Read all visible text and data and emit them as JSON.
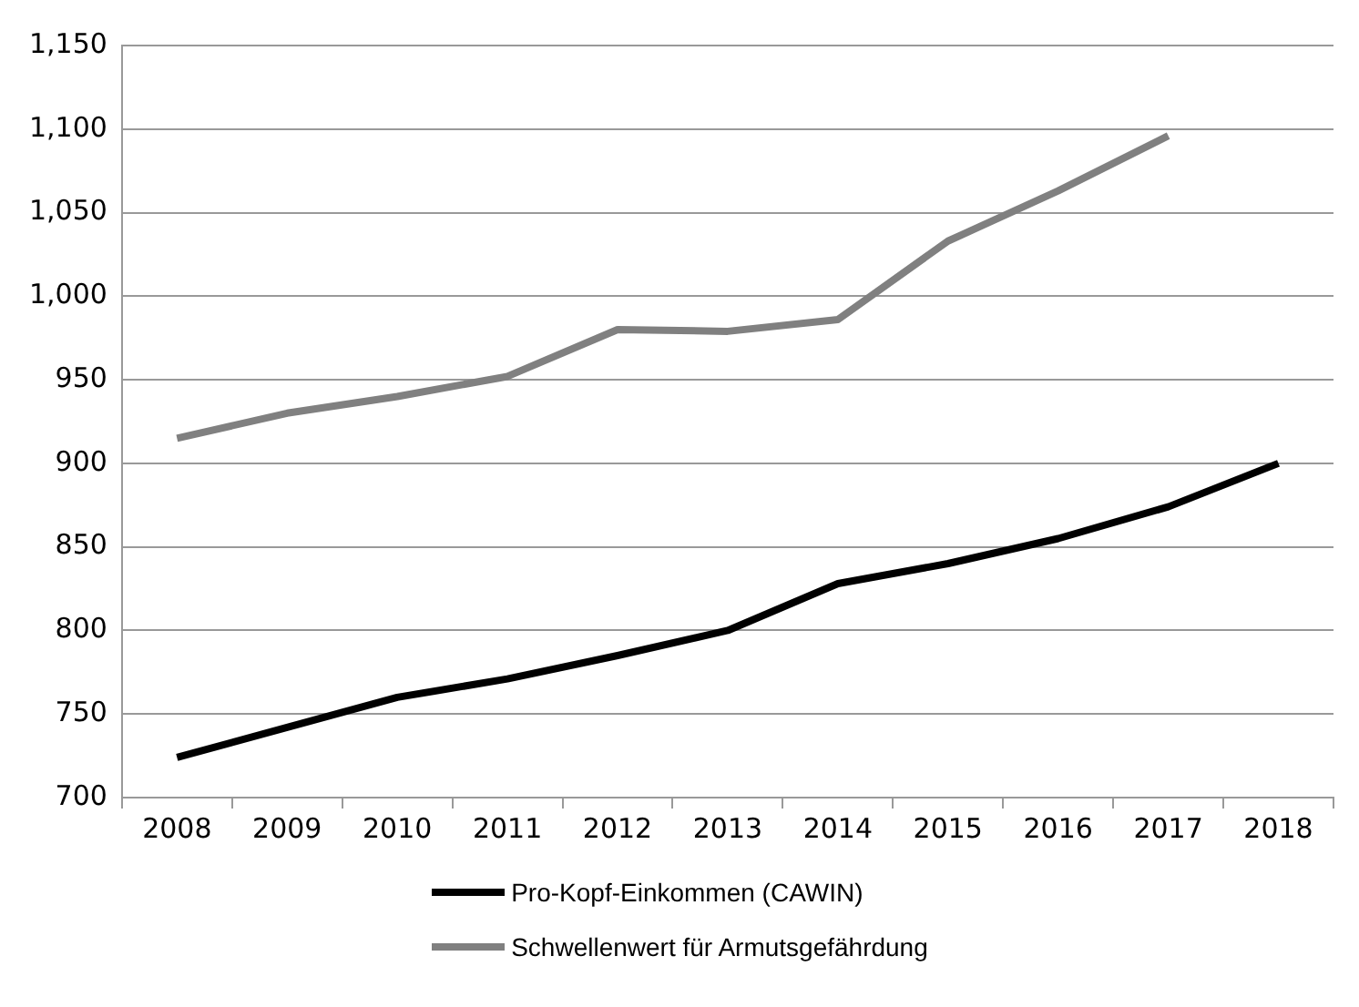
{
  "chart_data": {
    "type": "line",
    "categories": [
      "2008",
      "2009",
      "2010",
      "2011",
      "2012",
      "2013",
      "2014",
      "2015",
      "2016",
      "2017",
      "2018"
    ],
    "series": [
      {
        "name": "Pro-Kopf-Einkommen (CAWIN)",
        "color": "#000000",
        "values": [
          724,
          742,
          760,
          771,
          785,
          800,
          828,
          840,
          855,
          874,
          900
        ]
      },
      {
        "name": "Schwellenwert für Armutsgefährdung",
        "color": "#808080",
        "values": [
          915,
          930,
          940,
          952,
          980,
          979,
          986,
          1033,
          1063,
          1096,
          null
        ]
      }
    ],
    "ylim": [
      700,
      1150
    ],
    "yticks": [
      700,
      750,
      800,
      850,
      900,
      950,
      {
        "value": 1000,
        "label": "1,000"
      },
      {
        "value": 1050,
        "label": "1,050"
      },
      {
        "value": 1100,
        "label": "1,100"
      },
      {
        "value": 1150,
        "label": "1,150"
      }
    ],
    "grid": "y",
    "legend": "bottom",
    "marker": "none",
    "line_style": "solid"
  }
}
